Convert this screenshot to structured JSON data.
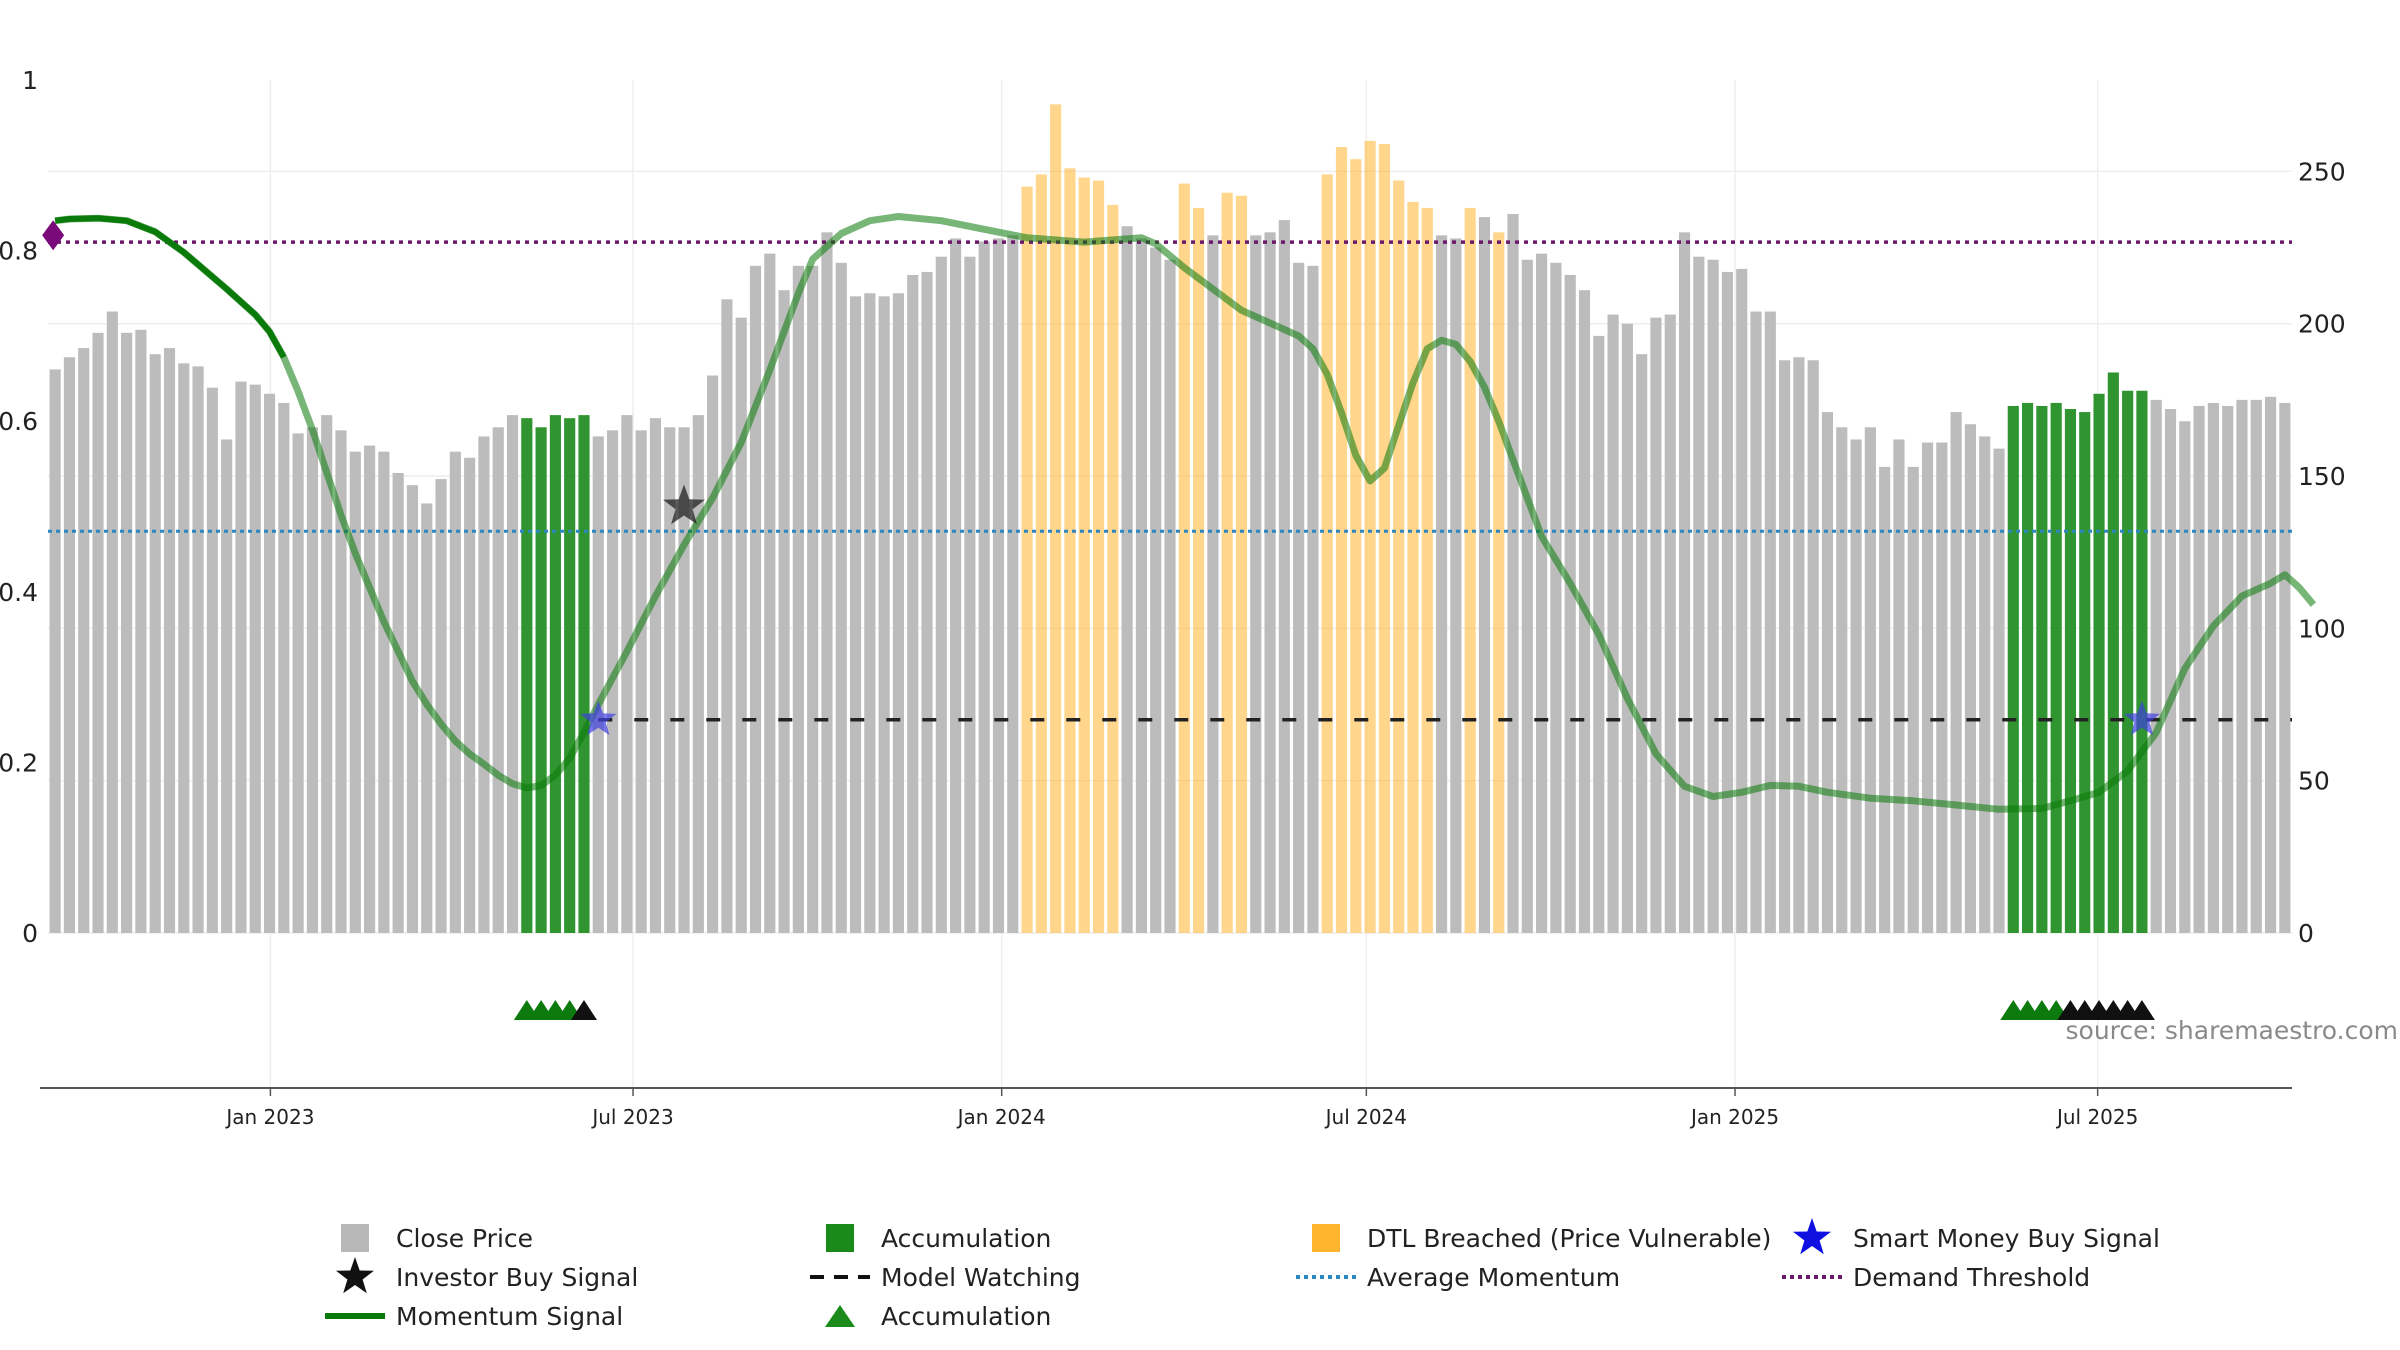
{
  "chart_data": {
    "type": "bar",
    "title": "",
    "source": "source: sharemaestro.com",
    "x_range": [
      "2022-09-12",
      "2025-10-06"
    ],
    "x_ticks": [
      {
        "label": "Jan 2023",
        "date": "2023-01-01"
      },
      {
        "label": "Jul 2023",
        "date": "2023-07-01"
      },
      {
        "label": "Jan 2024",
        "date": "2024-01-01"
      },
      {
        "label": "Jul 2024",
        "date": "2024-07-01"
      },
      {
        "label": "Jan 2025",
        "date": "2025-01-01"
      },
      {
        "label": "Jul 2025",
        "date": "2025-07-01"
      }
    ],
    "left_axis": {
      "min": 0,
      "max": 1,
      "ticks": [
        "0",
        "0.2",
        "0.4",
        "0.6",
        "0.8",
        "1"
      ]
    },
    "right_axis": {
      "min": 0,
      "max": 280,
      "ticks": [
        "0",
        "50",
        "100",
        "150",
        "200",
        "250"
      ]
    },
    "bars": {
      "start_date": "2022-09-12",
      "interval_days": 7,
      "values": [
        185,
        189,
        192,
        197,
        204,
        197,
        198,
        190,
        192,
        187,
        186,
        179,
        162,
        181,
        180,
        177,
        174,
        164,
        166,
        170,
        165,
        158,
        160,
        158,
        151,
        147,
        141,
        149,
        158,
        156,
        163,
        166,
        170,
        169,
        166,
        170,
        169,
        170,
        163,
        165,
        170,
        165,
        169,
        166,
        166,
        170,
        183,
        208,
        202,
        219,
        223,
        211,
        219,
        219,
        230,
        220,
        209,
        210,
        209,
        210,
        216,
        217,
        222,
        228,
        222,
        227,
        228,
        229,
        245,
        249,
        272,
        251,
        248,
        247,
        239,
        232,
        228,
        225,
        221,
        246,
        238,
        229,
        243,
        242,
        229,
        230,
        234,
        220,
        219,
        249,
        258,
        254,
        260,
        259,
        247,
        240,
        238,
        229,
        228,
        238,
        235,
        230,
        236,
        221,
        223,
        220,
        216,
        211,
        196,
        203,
        200,
        190,
        202,
        203,
        230,
        222,
        221,
        217,
        218,
        204,
        204,
        188,
        189,
        188,
        171,
        166,
        162,
        166,
        153,
        162,
        153,
        161,
        161,
        171,
        167,
        163,
        159,
        173,
        174,
        173,
        174,
        172,
        171,
        177,
        184,
        178,
        178,
        175,
        172,
        168,
        173,
        174,
        173,
        175,
        175,
        176,
        174
      ],
      "category_names": [
        "Close Price",
        "Accumulation",
        "DTL Breached (Price Vulnerable)"
      ],
      "colors": {
        "price": "#b8b8b8",
        "accumulation": "#1a8a1a",
        "dtl": "#ffb52e"
      },
      "accumulation_ranges": [
        [
          33,
          37
        ],
        [
          137,
          146
        ]
      ],
      "dtl_ranges": [
        [
          68,
          74
        ],
        [
          79,
          80
        ],
        [
          82,
          83
        ],
        [
          89,
          96
        ],
        [
          99,
          99
        ],
        [
          101,
          101
        ]
      ]
    },
    "momentum": {
      "name": "Momentum Signal",
      "axis": "left",
      "color": "#0a7a0a",
      "series": [
        [
          0,
          0.835
        ],
        [
          1,
          0.837
        ],
        [
          3,
          0.838
        ],
        [
          5,
          0.835
        ],
        [
          7,
          0.822
        ],
        [
          9,
          0.798
        ],
        [
          12,
          0.755
        ],
        [
          14,
          0.725
        ],
        [
          15,
          0.705
        ],
        [
          16,
          0.675
        ],
        [
          17,
          0.635
        ],
        [
          18,
          0.59
        ],
        [
          19,
          0.54
        ],
        [
          20,
          0.49
        ],
        [
          21,
          0.445
        ],
        [
          22,
          0.405
        ],
        [
          23,
          0.365
        ],
        [
          24,
          0.33
        ],
        [
          25,
          0.295
        ],
        [
          26,
          0.268
        ],
        [
          27,
          0.245
        ],
        [
          28,
          0.225
        ],
        [
          29,
          0.21
        ],
        [
          30,
          0.198
        ],
        [
          31,
          0.185
        ],
        [
          32,
          0.175
        ],
        [
          33,
          0.17
        ],
        [
          34,
          0.173
        ],
        [
          35,
          0.185
        ],
        [
          36,
          0.205
        ],
        [
          37,
          0.235
        ],
        [
          38,
          0.268
        ],
        [
          40,
          0.33
        ],
        [
          42,
          0.395
        ],
        [
          44,
          0.455
        ],
        [
          46,
          0.51
        ],
        [
          48,
          0.575
        ],
        [
          50,
          0.66
        ],
        [
          52,
          0.75
        ],
        [
          53,
          0.79
        ],
        [
          55,
          0.82
        ],
        [
          57,
          0.835
        ],
        [
          59,
          0.84
        ],
        [
          62,
          0.835
        ],
        [
          65,
          0.825
        ],
        [
          68,
          0.815
        ],
        [
          72,
          0.81
        ],
        [
          76,
          0.815
        ],
        [
          77,
          0.808
        ],
        [
          79,
          0.78
        ],
        [
          81,
          0.755
        ],
        [
          83,
          0.73
        ],
        [
          85,
          0.715
        ],
        [
          87,
          0.7
        ],
        [
          88,
          0.685
        ],
        [
          89,
          0.655
        ],
        [
          90,
          0.61
        ],
        [
          91,
          0.56
        ],
        [
          92,
          0.53
        ],
        [
          93,
          0.545
        ],
        [
          94,
          0.595
        ],
        [
          95,
          0.645
        ],
        [
          96,
          0.685
        ],
        [
          97,
          0.695
        ],
        [
          98,
          0.69
        ],
        [
          99,
          0.67
        ],
        [
          100,
          0.64
        ],
        [
          101,
          0.6
        ],
        [
          102,
          0.555
        ],
        [
          103,
          0.51
        ],
        [
          104,
          0.465
        ],
        [
          106,
          0.41
        ],
        [
          108,
          0.35
        ],
        [
          110,
          0.275
        ],
        [
          112,
          0.21
        ],
        [
          114,
          0.172
        ],
        [
          116,
          0.16
        ],
        [
          118,
          0.165
        ],
        [
          120,
          0.173
        ],
        [
          122,
          0.172
        ],
        [
          124,
          0.165
        ],
        [
          127,
          0.158
        ],
        [
          130,
          0.155
        ],
        [
          133,
          0.15
        ],
        [
          136,
          0.145
        ],
        [
          139,
          0.146
        ],
        [
          141,
          0.155
        ],
        [
          143,
          0.165
        ],
        [
          145,
          0.19
        ],
        [
          147,
          0.235
        ],
        [
          149,
          0.31
        ],
        [
          151,
          0.36
        ],
        [
          153,
          0.395
        ],
        [
          155,
          0.41
        ],
        [
          156,
          0.42
        ],
        [
          157,
          0.405
        ],
        [
          158,
          0.385
        ]
      ],
      "bright_until_index": 16
    },
    "threshold_lines": {
      "demand_threshold": {
        "name": "Demand Threshold",
        "value": 0.81,
        "color": "#6b1a6b"
      },
      "average_momentum": {
        "name": "Average Momentum",
        "value": 0.471,
        "color": "#2e86c1"
      },
      "model_watching": {
        "name": "Model Watching",
        "value": 0.25,
        "from_index": 38,
        "color": "#222222"
      }
    },
    "markers": {
      "smart_money_buy_signal": [
        {
          "index": 38,
          "value": 0.25
        },
        {
          "index": 146,
          "value": 0.25
        }
      ],
      "investor_buy_signal": [
        {
          "index": 44,
          "value": 0.5
        }
      ],
      "demand_marker": {
        "index": 0,
        "value": 0.818,
        "color": "#7a0a7a"
      }
    },
    "signal_strip": {
      "green_triangles": [
        33,
        34,
        35,
        36,
        137,
        138,
        139,
        140
      ],
      "black_triangles": [
        37,
        141,
        142,
        143,
        144,
        145,
        146
      ]
    },
    "legend": [
      {
        "label": "Close Price",
        "symbol": "square",
        "color": "#b8b8b8"
      },
      {
        "label": "Accumulation",
        "symbol": "square",
        "color": "#1a8a1a"
      },
      {
        "label": "DTL Breached (Price Vulnerable)",
        "symbol": "square",
        "color": "#ffb52e"
      },
      {
        "label": "Smart Money Buy Signal",
        "symbol": "star",
        "color": "#1010e0"
      },
      {
        "label": "Investor Buy Signal",
        "symbol": "star",
        "color": "#111111"
      },
      {
        "label": "Model Watching",
        "symbol": "dash",
        "color": "#111111"
      },
      {
        "label": "Average Momentum",
        "symbol": "dot",
        "color": "#2e86c1"
      },
      {
        "label": "Demand Threshold",
        "symbol": "dot",
        "color": "#6b1a6b"
      },
      {
        "label": "Momentum Signal",
        "symbol": "line",
        "color": "#0a7a0a"
      },
      {
        "label": "Accumulation",
        "symbol": "triangle",
        "color": "#1a8a1a"
      }
    ]
  }
}
